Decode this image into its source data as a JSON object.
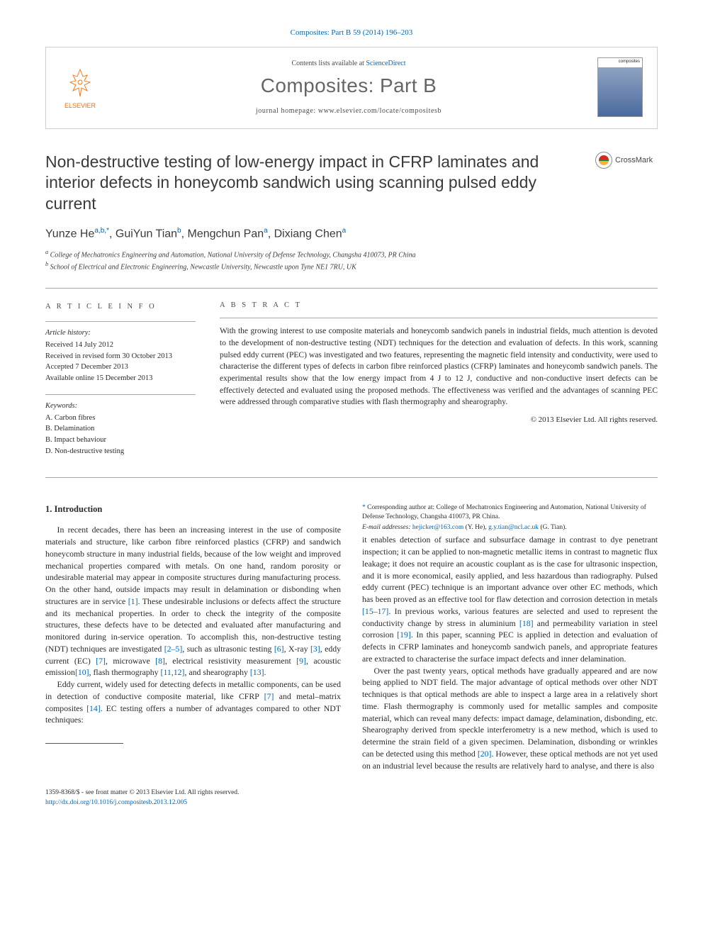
{
  "top_cite": "Composites: Part B 59 (2014) 196–203",
  "header": {
    "contents_prefix": "Contents lists available at ",
    "sciencedirect": "ScienceDirect",
    "journal": "Composites: Part B",
    "homepage_prefix": "journal homepage: ",
    "homepage_url": "www.elsevier.com/locate/compositesb",
    "publisher": "ELSEVIER",
    "cover_label": "composites"
  },
  "crossmark": "CrossMark",
  "title": "Non-destructive testing of low-energy impact in CFRP laminates and interior defects in honeycomb sandwich using scanning pulsed eddy current",
  "authors_html": "Yunze He<span class='sup'>a,b,</span><span class='sup star'>*</span>, GuiYun Tian<span class='sup'>b</span>, Mengchun Pan<span class='sup'>a</span>, Dixiang Chen<span class='sup'>a</span>",
  "affiliations": [
    "College of Mechatronics Engineering and Automation, National University of Defense Technology, Changsha 410073, PR China",
    "School of Electrical and Electronic Engineering, Newcastle University, Newcastle upon Tyne NE1 7RU, UK"
  ],
  "info": {
    "label": "A R T I C L E   I N F O",
    "history_label": "Article history:",
    "history": [
      "Received 14 July 2012",
      "Received in revised form 30 October 2013",
      "Accepted 7 December 2013",
      "Available online 15 December 2013"
    ],
    "keywords_label": "Keywords:",
    "keywords": [
      "A. Carbon fibres",
      "B. Delamination",
      "B. Impact behaviour",
      "D. Non-destructive testing"
    ]
  },
  "abstract": {
    "label": "A B S T R A C T",
    "text": "With the growing interest to use composite materials and honeycomb sandwich panels in industrial fields, much attention is devoted to the development of non-destructive testing (NDT) techniques for the detection and evaluation of defects. In this work, scanning pulsed eddy current (PEC) was investigated and two features, representing the magnetic field intensity and conductivity, were used to characterise the different types of defects in carbon fibre reinforced plastics (CFRP) laminates and honeycomb sandwich panels. The experimental results show that the low energy impact from 4 J to 12 J, conductive and non-conductive insert defects can be effectively detected and evaluated using the proposed methods. The effectiveness was verified and the advantages of scanning PEC were addressed through comparative studies with flash thermography and shearography.",
    "copyright": "© 2013 Elsevier Ltd. All rights reserved."
  },
  "section_heading": "1. Introduction",
  "para1": "In recent decades, there has been an increasing interest in the use of composite materials and structure, like carbon fibre reinforced plastics (CFRP) and sandwich honeycomb structure in many industrial fields, because of the low weight and improved mechanical properties compared with metals. On one hand, random porosity or undesirable material may appear in composite structures during manufacturing process. On the other hand, outside impacts may result in delamination or disbonding when structures are in service <span class='ref'>[1]</span>. These undesirable inclusions or defects affect the structure and its mechanical properties. In order to check the integrity of the composite structures, these defects have to be detected and evaluated after manufacturing and monitored during in-service operation. To accomplish this, non-destructive testing (NDT) techniques are investigated <span class='ref'>[2–5]</span>, such as ultrasonic testing <span class='ref'>[6]</span>, X-ray <span class='ref'>[3]</span>, eddy current (EC) <span class='ref'>[7]</span>, microwave <span class='ref'>[8]</span>, electrical resistivity measurement <span class='ref'>[9]</span>, acoustic emission<span class='ref'>[10]</span>, flash thermography <span class='ref'>[11,12]</span>, and shearography <span class='ref'>[13]</span>.",
  "para2": "Eddy current, widely used for detecting defects in metallic components, can be used in detection of conductive composite material, like CFRP <span class='ref'>[7]</span> and metal–matrix composites <span class='ref'>[14]</span>. EC testing offers a number of advantages compared to other NDT techniques:",
  "para3": "it enables detection of surface and subsurface damage in contrast to dye penetrant inspection; it can be applied to non-magnetic metallic items in contrast to magnetic flux leakage; it does not require an acoustic couplant as is the case for ultrasonic inspection, and it is more economical, easily applied, and less hazardous than radiography. Pulsed eddy current (PEC) technique is an important advance over other EC methods, which has been proved as an effective tool for flaw detection and corrosion detection in metals <span class='ref'>[15–17]</span>. In previous works, various features are selected and used to represent the conductivity change by stress in aluminium <span class='ref'>[18]</span> and permeability variation in steel corrosion <span class='ref'>[19]</span>. In this paper, scanning PEC is applied in detection and evaluation of defects in CFRP laminates and honeycomb sandwich panels, and appropriate features are extracted to characterise the surface impact defects and inner delamination.",
  "para4": "Over the past twenty years, optical methods have gradually appeared and are now being applied to NDT field. The major advantage of optical methods over other NDT techniques is that optical methods are able to inspect a large area in a relatively short time. Flash thermography is commonly used for metallic samples and composite material, which can reveal many defects: impact damage, delamination, disbonding, etc. Shearography derived from speckle interferometry is a new method, which is used to determine the strain field of a given specimen. Delamination, disbonding or wrinkles can be detected using this method <span class='ref'>[20]</span>. However, these optical methods are not yet used on an industrial level because the results are relatively hard to analyse, and there is also",
  "footnotes": {
    "corresponding": "Corresponding author at: College of Mechatronics Engineering and Automation, National University of Defense Technology, Changsha 410073, PR China.",
    "email_label": "E-mail addresses:",
    "email1": "hejicker@163.com",
    "email1_who": "(Y. He),",
    "email2": "g.y.tian@ncl.ac.uk",
    "email2_who": "(G. Tian)."
  },
  "footer": {
    "issn": "1359-8368/$ - see front matter © 2013 Elsevier Ltd. All rights reserved.",
    "doi": "http://dx.doi.org/10.1016/j.compositesb.2013.12.005"
  },
  "colors": {
    "link": "#0066b3",
    "elsevier_orange": "#ff6c00",
    "text": "#2a2a2a",
    "grey_title": "#666666",
    "rule": "#aaaaaa"
  }
}
